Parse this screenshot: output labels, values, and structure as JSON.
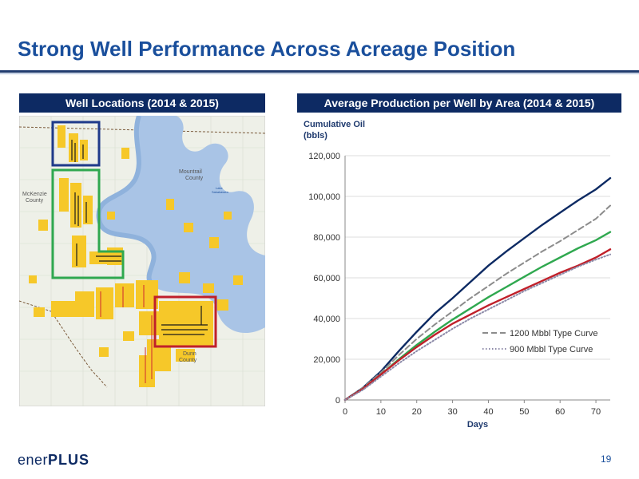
{
  "slide": {
    "title": "Strong Well Performance Across Acreage Position",
    "page_number": "19"
  },
  "logo": {
    "prefix": "ener",
    "suffix": "PLUS"
  },
  "left_panel": {
    "header": "Well Locations (2014 & 2015)",
    "map": {
      "county_labels": [
        {
          "line1": "McKenzie",
          "line2": "County"
        },
        {
          "line1": "Mountrail",
          "line2": "County"
        },
        {
          "line1": "Dunn",
          "line2": "County"
        }
      ],
      "lake_label": {
        "line1": "Lake",
        "line2": "Sakakawea"
      },
      "outline_colors": {
        "north": "#1f3a8a",
        "west": "#2fa84f",
        "south": "#c0202a"
      },
      "water_color": "#a9c4e6",
      "acreage_color": "#f6c829"
    }
  },
  "right_panel": {
    "header": "Average Production per Well by Area (2014 & 2015)"
  },
  "chart_data": {
    "type": "line",
    "ylabel_line1": "Cumulative Oil",
    "ylabel_line2": "(bbls)",
    "xlabel": "Days",
    "xlim": [
      0,
      74
    ],
    "ylim": [
      0,
      120000
    ],
    "x_ticks": [
      "0",
      "10",
      "20",
      "30",
      "40",
      "50",
      "60",
      "70"
    ],
    "y_ticks": [
      "0",
      "20,000",
      "40,000",
      "60,000",
      "80,000",
      "100,000",
      "120,000"
    ],
    "grid": "horizontal",
    "legend_position": "bottom-right",
    "legend": [
      {
        "label": "1200 Mbbl Type Curve",
        "style": "dashed",
        "color": "#8c8c8c"
      },
      {
        "label": "900 Mbbl Type Curve",
        "style": "dotted",
        "color": "#8c8aa8"
      }
    ],
    "series": [
      {
        "color": "#0d2a63",
        "style": "solid",
        "x": [
          0,
          5,
          10,
          15,
          20,
          25,
          30,
          35,
          40,
          45,
          50,
          55,
          60,
          65,
          70,
          74
        ],
        "y": [
          0,
          6000,
          14000,
          24000,
          33500,
          42500,
          50000,
          58000,
          66000,
          73000,
          79500,
          86000,
          92000,
          98000,
          103500,
          109000
        ]
      },
      {
        "color": "#8c8c8c",
        "style": "dashed",
        "x": [
          0,
          5,
          10,
          15,
          20,
          25,
          30,
          35,
          40,
          45,
          50,
          55,
          60,
          65,
          70,
          74
        ],
        "y": [
          0,
          6000,
          13500,
          22000,
          30000,
          37000,
          43500,
          50000,
          56000,
          62000,
          67500,
          73000,
          78000,
          83500,
          89000,
          95500
        ]
      },
      {
        "color": "#2fa84f",
        "style": "solid",
        "x": [
          0,
          5,
          10,
          15,
          20,
          25,
          30,
          35,
          40,
          45,
          50,
          55,
          60,
          65,
          70,
          74
        ],
        "y": [
          0,
          5500,
          12500,
          20000,
          27000,
          33500,
          39500,
          45000,
          50500,
          55500,
          60500,
          65500,
          70000,
          74500,
          78500,
          82500
        ]
      },
      {
        "color": "#c0202a",
        "style": "solid",
        "x": [
          0,
          5,
          10,
          15,
          20,
          25,
          30,
          35,
          40,
          45,
          50,
          55,
          60,
          65,
          70,
          74
        ],
        "y": [
          0,
          5500,
          12500,
          19500,
          26000,
          32000,
          37500,
          42000,
          46500,
          50500,
          54500,
          58500,
          62500,
          66000,
          70000,
          74000
        ]
      },
      {
        "color": "#8c8aa8",
        "style": "dotted",
        "x": [
          0,
          5,
          10,
          15,
          20,
          25,
          30,
          35,
          40,
          45,
          50,
          55,
          60,
          65,
          70,
          74
        ],
        "y": [
          0,
          5000,
          11500,
          18000,
          24000,
          29500,
          35000,
          40000,
          44500,
          49000,
          53500,
          57500,
          61500,
          65500,
          69000,
          71500
        ]
      }
    ]
  }
}
